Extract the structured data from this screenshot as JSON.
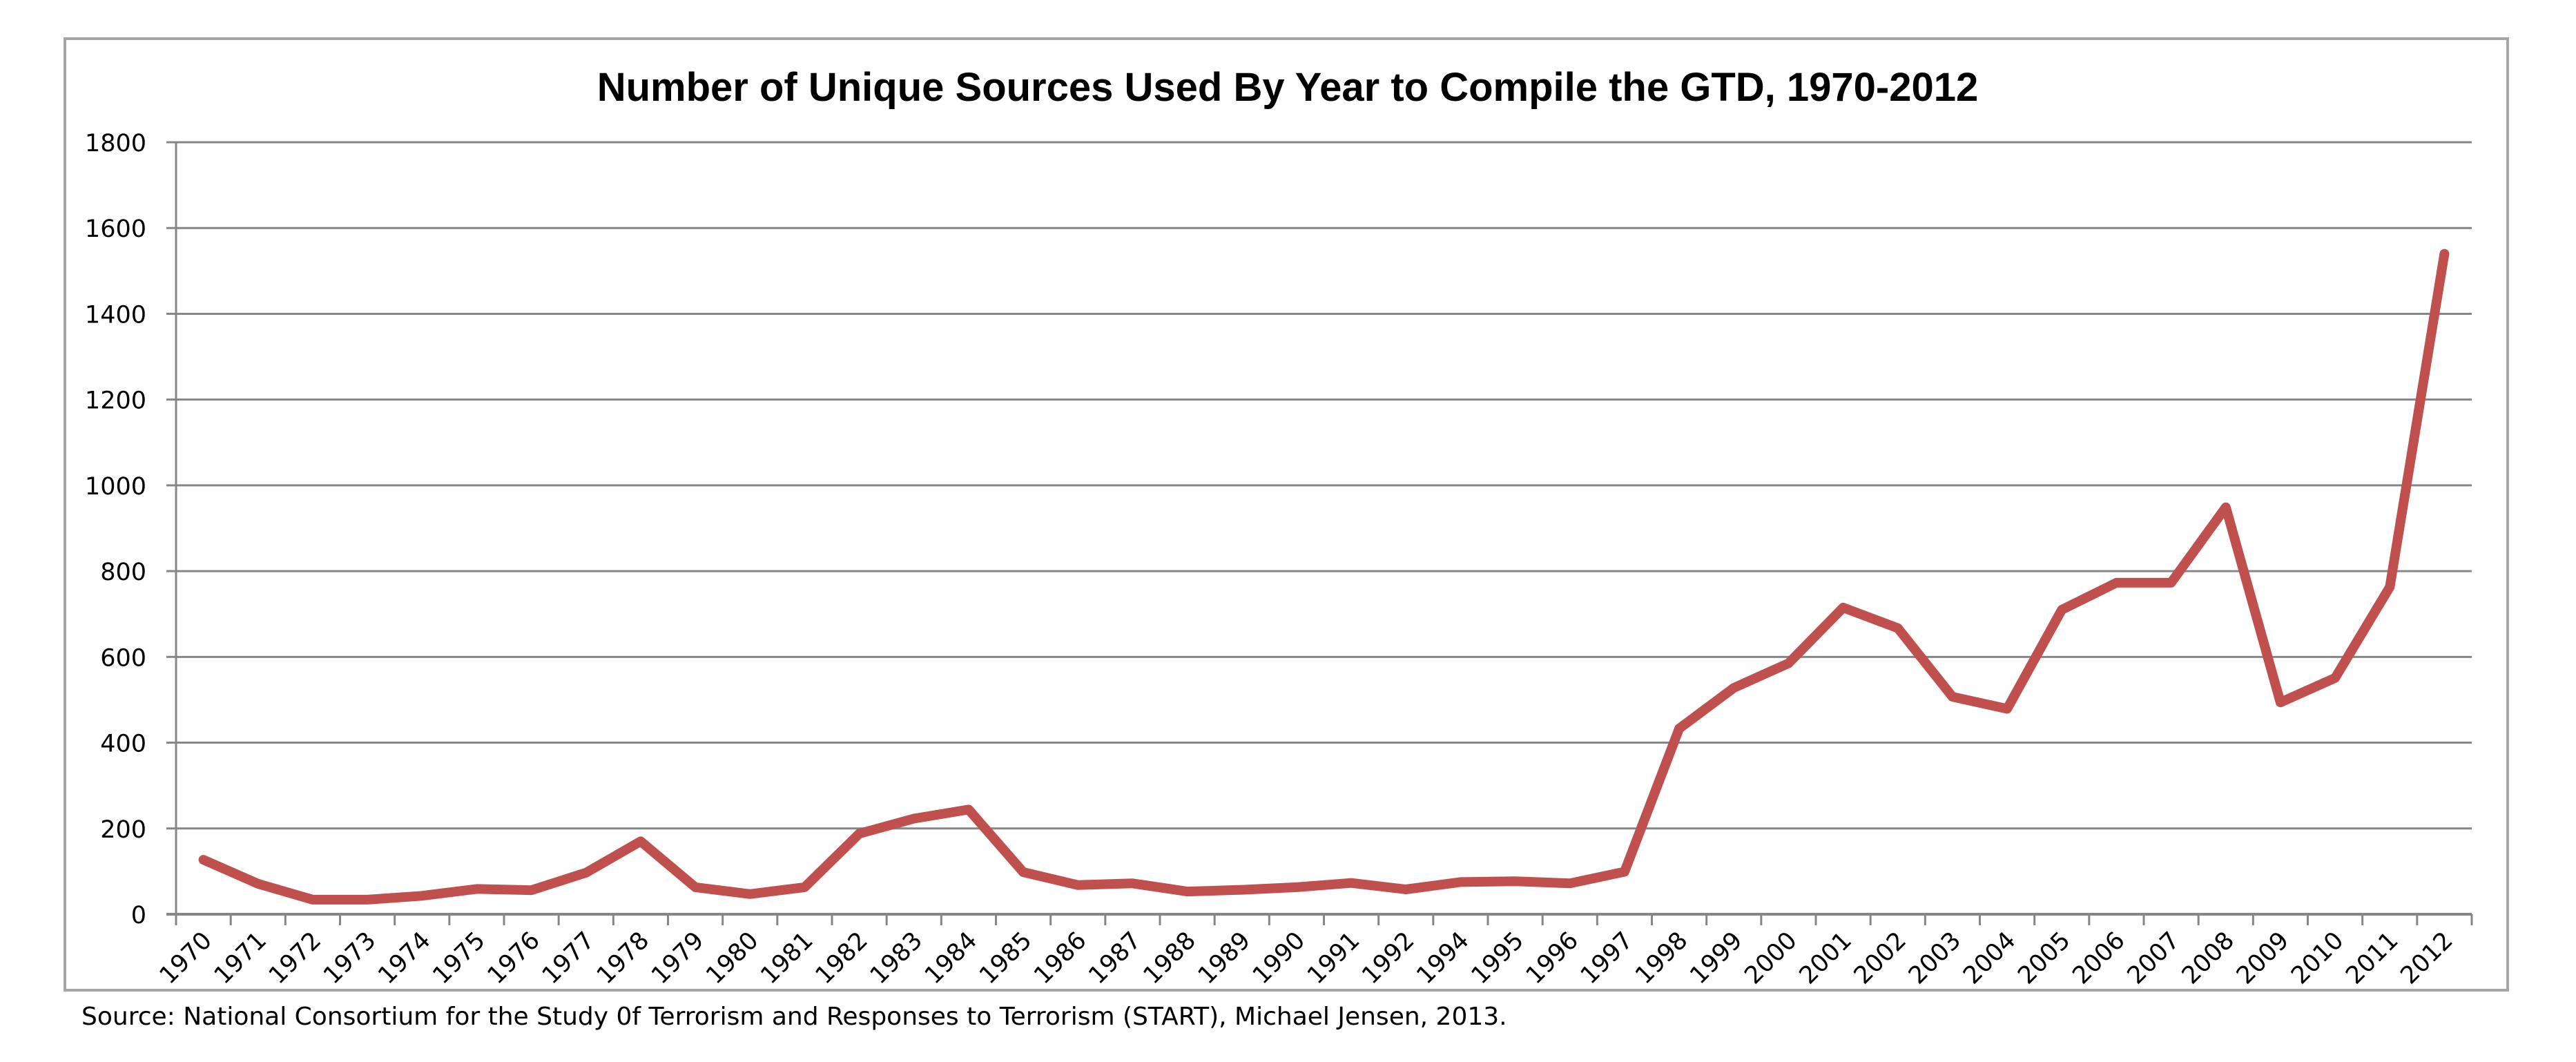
{
  "chart_data": {
    "type": "line",
    "title": "Number of Unique Sources Used By Year to Compile the GTD, 1970-2012",
    "xlabel": "",
    "ylabel": "",
    "ylim": [
      0,
      1800
    ],
    "yticks": [
      "0",
      "200",
      "400",
      "600",
      "800",
      "1000",
      "1200",
      "1400",
      "1600",
      "1800"
    ],
    "grid": true,
    "legend": "none",
    "categories": [
      "1970",
      "1971",
      "1972",
      "1973",
      "1974",
      "1975",
      "1976",
      "1977",
      "1978",
      "1979",
      "1980",
      "1981",
      "1982",
      "1983",
      "1984",
      "1985",
      "1986",
      "1987",
      "1988",
      "1989",
      "1990",
      "1991",
      "1992",
      "1994",
      "1995",
      "1996",
      "1997",
      "1998",
      "1999",
      "2000",
      "2001",
      "2002",
      "2003",
      "2004",
      "2005",
      "2006",
      "2007",
      "2008",
      "2009",
      "2010",
      "2011",
      "2012"
    ],
    "series": [
      {
        "name": "Unique Sources",
        "color": "#c0504d",
        "values": [
          127,
          71,
          34,
          34,
          43,
          59,
          56,
          97,
          170,
          63,
          47,
          63,
          188,
          223,
          244,
          98,
          68,
          72,
          53,
          57,
          63,
          73,
          58,
          75,
          77,
          72,
          99,
          433,
          528,
          585,
          715,
          667,
          507,
          479,
          710,
          773,
          773,
          949,
          494,
          551,
          763,
          1540
        ]
      }
    ],
    "colors": {
      "gridline": "#868686",
      "axis": "#868686",
      "frame": "#a6a6a6"
    }
  },
  "source_note": "Source: National Consortium for the Study 0f Terrorism and Responses to Terrorism (START), Michael Jensen, 2013."
}
